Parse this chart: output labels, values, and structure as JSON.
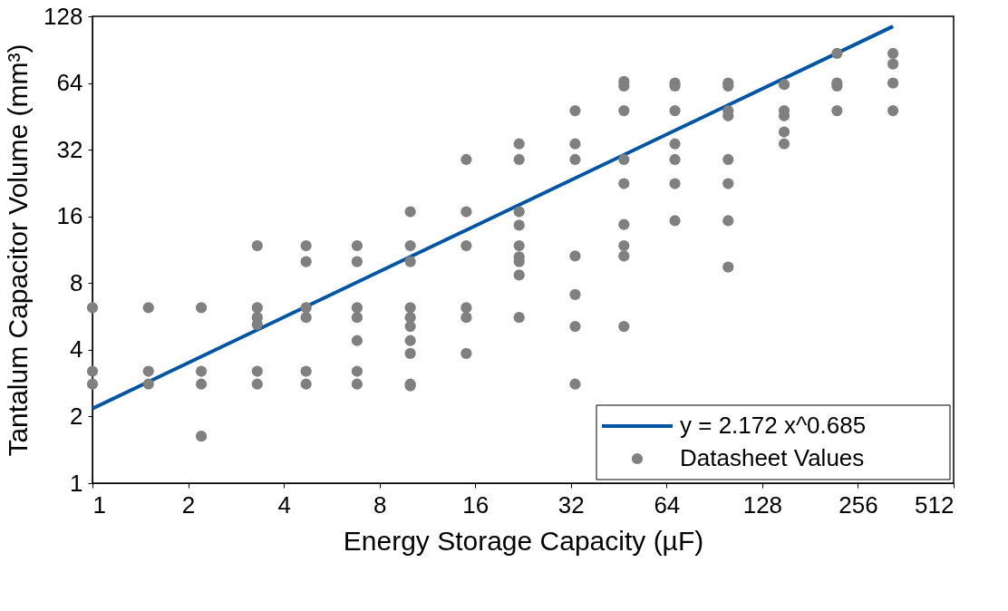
{
  "chart_data": {
    "type": "scatter",
    "xlabel": "Energy Storage Capacity (µF)",
    "ylabel": "Tantalum Capacitor Volume (mm³)",
    "log": "xy",
    "xlim": [
      1,
      512
    ],
    "ylim": [
      1,
      128
    ],
    "xticks": [
      1,
      2,
      4,
      8,
      16,
      32,
      64,
      128,
      256,
      512
    ],
    "yticks": [
      1,
      2,
      4,
      8,
      16,
      32,
      64,
      128
    ],
    "grid": false,
    "legend": "bottom right",
    "series": [
      {
        "name": "y = 2.172 x^0.685",
        "type": "line",
        "color": "#0055a5",
        "line_style": "solid",
        "marker": "none",
        "x": [
          1,
          330
        ],
        "values": [
          2.172,
          115.3
        ]
      },
      {
        "name": "Datasheet Values",
        "type": "scatter",
        "color": "#808080",
        "marker": "circle",
        "x": [
          1,
          1,
          1,
          1.5,
          1.5,
          1.5,
          2.2,
          2.2,
          2.2,
          2.2,
          3.3,
          3.3,
          3.3,
          3.3,
          3.3,
          3.3,
          4.7,
          4.7,
          4.7,
          4.7,
          4.7,
          4.7,
          6.8,
          6.8,
          6.8,
          6.8,
          6.8,
          6.8,
          6.8,
          10,
          10,
          10,
          10,
          10,
          10,
          10,
          10,
          10,
          10,
          15,
          15,
          15,
          15,
          15,
          15,
          22,
          22,
          22,
          22,
          22,
          22,
          22,
          22,
          22,
          33,
          33,
          33,
          33,
          33,
          33,
          33,
          47,
          47,
          47,
          47,
          47,
          47,
          47,
          47,
          47,
          68,
          68,
          68,
          68,
          68,
          68,
          68,
          100,
          100,
          100,
          100,
          100,
          100,
          100,
          100,
          150,
          150,
          150,
          150,
          150,
          220,
          220,
          220,
          220,
          330,
          330,
          330,
          330
        ],
        "values": [
          6.2,
          3.2,
          2.8,
          6.2,
          3.2,
          2.8,
          6.2,
          3.2,
          2.8,
          1.63,
          11.8,
          6.2,
          5.6,
          5.2,
          3.2,
          2.8,
          11.8,
          10,
          6.2,
          5.6,
          3.2,
          2.8,
          11.8,
          10,
          6.2,
          5.6,
          4.4,
          3.2,
          2.8,
          16.8,
          11.8,
          10,
          6.2,
          5.6,
          5.1,
          4.4,
          3.85,
          2.8,
          2.75,
          28.9,
          16.8,
          11.8,
          6.2,
          5.6,
          3.85,
          34,
          28.9,
          16.8,
          14.6,
          11.8,
          10.5,
          10,
          8.7,
          5.6,
          48,
          34,
          28.9,
          10.6,
          7.1,
          5.1,
          2.8,
          65,
          62,
          48,
          28.9,
          22.5,
          14.7,
          11.8,
          10.6,
          5.1,
          64,
          62,
          48,
          34,
          28.9,
          22.5,
          15.3,
          64,
          62,
          48,
          45.5,
          28.9,
          22.5,
          15.3,
          9.45,
          63,
          48,
          45.5,
          38.5,
          34,
          87,
          64,
          62,
          48,
          87,
          78,
          64,
          48
        ]
      }
    ]
  }
}
